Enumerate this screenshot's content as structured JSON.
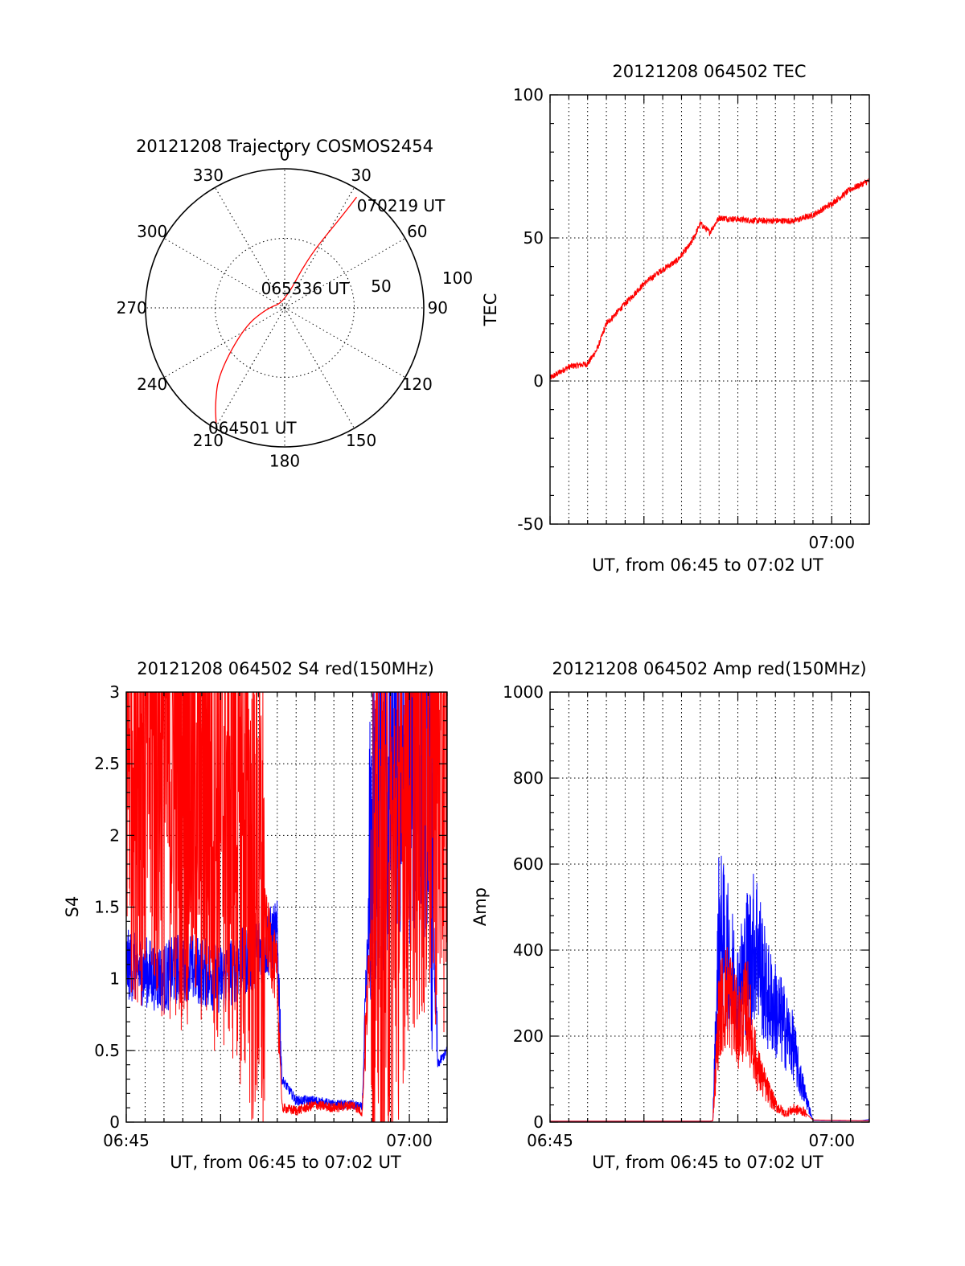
{
  "colors": {
    "red": "#ff0000",
    "blue": "#0000ff",
    "axis": "#000000"
  },
  "chart_data": [
    {
      "id": "trajectory",
      "type": "polar",
      "title": "20121208 Trajectory COSMOS2454",
      "azimuth_labels": [
        "0",
        "30",
        "60",
        "90",
        "120",
        "150",
        "180",
        "210",
        "240",
        "270",
        "300",
        "330"
      ],
      "radial_labels": [
        "50",
        "100"
      ],
      "radial_range": [
        0,
        100
      ],
      "track": {
        "color": "red",
        "points": [
          [
            210.5,
            97
          ],
          [
            216,
            85
          ],
          [
            225,
            67
          ],
          [
            245,
            32
          ],
          [
            270,
            12
          ],
          [
            355,
            4
          ],
          [
            25,
            40
          ],
          [
            32,
            78
          ],
          [
            33,
            95
          ]
        ]
      },
      "annotations": [
        {
          "text": "070219 UT",
          "az": 33,
          "r": 95
        },
        {
          "text": "065336 UT",
          "az": 355,
          "r": 4
        },
        {
          "text": "064501 UT",
          "az": 210.5,
          "r": 97
        }
      ]
    },
    {
      "id": "tec",
      "type": "line",
      "title": "20121208 064502 TEC",
      "xlabel": "UT, from 06:45 to 07:02 UT",
      "ylabel": "TEC",
      "xlim": [
        "06:45",
        "07:02"
      ],
      "xtick_labels": [
        {
          "x": "07:00",
          "label": "07:00"
        }
      ],
      "ylim": [
        -50,
        100
      ],
      "yticks": [
        -50,
        0,
        50,
        100
      ],
      "grid": true,
      "series": [
        {
          "color": "red",
          "x": [
            "06:45:00",
            "06:46:00",
            "06:47:00",
            "06:47:30",
            "06:48:00",
            "06:49:00",
            "06:50:00",
            "06:51:00",
            "06:51:45",
            "06:52:30",
            "06:53:00",
            "06:53:30",
            "06:54:00",
            "06:56:00",
            "06:58:00",
            "06:58:30",
            "06:59:00",
            "07:00:00",
            "07:01:00",
            "07:02:00"
          ],
          "y": [
            1,
            5,
            6,
            11,
            20,
            27,
            34,
            39,
            42,
            48,
            55,
            52,
            57,
            56,
            56,
            57,
            58,
            62,
            67,
            70
          ]
        }
      ]
    },
    {
      "id": "s4",
      "type": "line",
      "title": "20121208 064502 S4 red(150MHz)",
      "xlabel": "UT, from 06:45 to 07:02 UT",
      "ylabel": "S4",
      "xlim": [
        "06:45",
        "07:02"
      ],
      "xtick_labels": [
        {
          "x": "06:45",
          "label": "06:45"
        },
        {
          "x": "07:00",
          "label": "07:00"
        }
      ],
      "ylim": [
        0,
        3
      ],
      "yticks": [
        0,
        0.5,
        1,
        1.5,
        2,
        2.5,
        3
      ],
      "ytick_labels": [
        "0",
        "0.5",
        "1",
        "1.5",
        "2",
        "2.5",
        "3"
      ],
      "grid": true,
      "series": [
        {
          "color": "blue",
          "x": [
            "06:45:00",
            "06:46:00",
            "06:47:00",
            "06:48:00",
            "06:49:00",
            "06:50:00",
            "06:51:00",
            "06:52:00",
            "06:53:00",
            "06:53:15",
            "06:54:00",
            "06:55:00",
            "06:56:00",
            "06:57:00",
            "06:57:30",
            "06:58:00",
            "06:59:00",
            "07:00:00",
            "07:01:00",
            "07:01:30",
            "07:02:00"
          ],
          "y": [
            1.1,
            1.05,
            1.0,
            1.1,
            1.05,
            1.0,
            1.1,
            1.2,
            1.3,
            0.3,
            0.15,
            0.15,
            0.12,
            0.12,
            0.1,
            2.0,
            2.3,
            2.4,
            2.5,
            0.4,
            0.5
          ]
        },
        {
          "color": "red",
          "x": [
            "06:45:00",
            "06:47:00",
            "06:49:00",
            "06:51:00",
            "06:52:30",
            "06:53:00",
            "06:53:15",
            "06:54:00",
            "06:55:00",
            "06:56:00",
            "06:57:00",
            "06:57:30",
            "06:58:00",
            "06:59:00",
            "07:00:00",
            "07:01:00",
            "07:02:00"
          ],
          "y": [
            2.8,
            2.6,
            2.5,
            2.2,
            1.3,
            1.0,
            0.1,
            0.08,
            0.12,
            0.1,
            0.12,
            0.07,
            1.5,
            1.5,
            2.5,
            2.6,
            2.5
          ]
        }
      ]
    },
    {
      "id": "amp",
      "type": "line",
      "title": "20121208 064502 Amp red(150MHz)",
      "xlabel": "UT, from 06:45 to 07:02 UT",
      "ylabel": "Amp",
      "xlim": [
        "06:45",
        "07:02"
      ],
      "xtick_labels": [
        {
          "x": "06:45",
          "label": "06:45"
        },
        {
          "x": "07:00",
          "label": "07:00"
        }
      ],
      "ylim": [
        0,
        1000
      ],
      "yticks": [
        0,
        200,
        400,
        600,
        800,
        1000
      ],
      "grid": true,
      "series": [
        {
          "color": "blue",
          "x": [
            "06:45:00",
            "06:53:30",
            "06:53:40",
            "06:54:00",
            "06:54:30",
            "06:55:00",
            "06:55:30",
            "06:56:00",
            "06:56:30",
            "06:57:00",
            "06:57:30",
            "06:58:00",
            "06:58:15",
            "06:59:00",
            "07:01:30",
            "07:02:00"
          ],
          "y": [
            2,
            2,
            3,
            450,
            380,
            300,
            380,
            420,
            300,
            260,
            220,
            170,
            110,
            4,
            3,
            6
          ]
        },
        {
          "color": "red",
          "x": [
            "06:45:00",
            "06:53:30",
            "06:53:40",
            "06:54:00",
            "06:54:30",
            "06:55:00",
            "06:55:30",
            "06:56:00",
            "06:56:30",
            "06:57:00",
            "06:57:30",
            "06:58:00",
            "06:58:30",
            "06:59:00",
            "07:02:00"
          ],
          "y": [
            2,
            2,
            3,
            260,
            300,
            220,
            270,
            130,
            80,
            40,
            20,
            30,
            25,
            5,
            3
          ]
        }
      ]
    }
  ]
}
